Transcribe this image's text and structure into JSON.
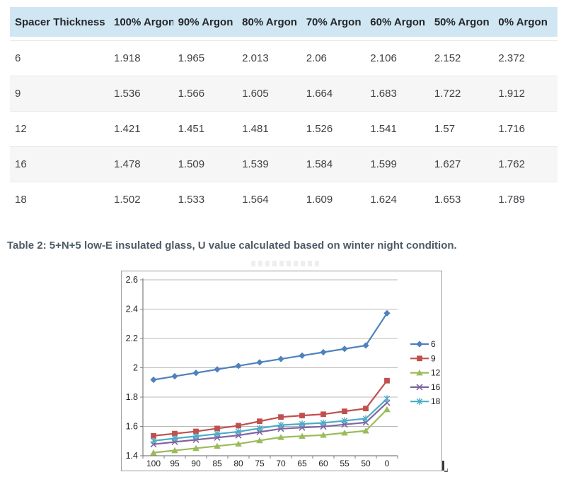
{
  "table": {
    "columns": [
      "Spacer Thickness",
      "100% Argon",
      "90% Argon",
      "80% Argon",
      "70% Argon",
      "60% Argon",
      "50% Argon",
      "0% Argon"
    ],
    "rows": [
      [
        "6",
        "1.918",
        "1.965",
        "2.013",
        "2.06",
        "2.106",
        "2.152",
        "2.372"
      ],
      [
        "9",
        "1.536",
        "1.566",
        "1.605",
        "1.664",
        "1.683",
        "1.722",
        "1.912"
      ],
      [
        "12",
        "1.421",
        "1.451",
        "1.481",
        "1.526",
        "1.541",
        "1.57",
        "1.716"
      ],
      [
        "16",
        "1.478",
        "1.509",
        "1.539",
        "1.584",
        "1.599",
        "1.627",
        "1.762"
      ],
      [
        "18",
        "1.502",
        "1.533",
        "1.564",
        "1.609",
        "1.624",
        "1.653",
        "1.789"
      ]
    ],
    "header_bg": "#d1e6f3",
    "row_alt_bg": "#f6f6f6"
  },
  "caption": {
    "text": "Table 2: 5+N+5 low-E insulated glass, U value calculated based on winter night condition.",
    "color": "#4d5b67"
  },
  "chart_data": {
    "type": "line",
    "title": "",
    "xlabel": "",
    "ylabel": "",
    "x_categories": [
      "100",
      "95",
      "90",
      "85",
      "80",
      "75",
      "70",
      "65",
      "60",
      "55",
      "50",
      "0"
    ],
    "ylim": [
      1.4,
      2.6
    ],
    "ytick_step": 0.2,
    "grid": true,
    "legend_position": "right",
    "series": [
      {
        "name": "6",
        "color": "#4F81BD",
        "marker": "diamond",
        "values": [
          1.918,
          1.942,
          1.965,
          1.989,
          2.013,
          2.037,
          2.06,
          2.083,
          2.106,
          2.129,
          2.152,
          2.372
        ]
      },
      {
        "name": "9",
        "color": "#C0504D",
        "marker": "square",
        "values": [
          1.536,
          1.551,
          1.566,
          1.586,
          1.605,
          1.635,
          1.664,
          1.674,
          1.683,
          1.703,
          1.722,
          1.912
        ]
      },
      {
        "name": "12",
        "color": "#9BBB59",
        "marker": "triangle",
        "values": [
          1.421,
          1.436,
          1.451,
          1.466,
          1.481,
          1.504,
          1.526,
          1.534,
          1.541,
          1.556,
          1.57,
          1.716
        ]
      },
      {
        "name": "16",
        "color": "#8064A2",
        "marker": "x",
        "values": [
          1.478,
          1.494,
          1.509,
          1.524,
          1.539,
          1.562,
          1.584,
          1.592,
          1.599,
          1.613,
          1.627,
          1.762
        ]
      },
      {
        "name": "18",
        "color": "#4BACC6",
        "marker": "asterisk",
        "values": [
          1.502,
          1.518,
          1.533,
          1.549,
          1.564,
          1.587,
          1.609,
          1.617,
          1.624,
          1.639,
          1.653,
          1.789
        ]
      }
    ],
    "axis_color": "#7f7f7f",
    "grid_color": "#b8b8b8",
    "border_color": "#a3a3a3",
    "tick_label_color": "#1f1f1f"
  },
  "icons": {
    "watermark": "illegible-faint-smudge",
    "cursor_artifact": "small-J-shaped-mark"
  }
}
